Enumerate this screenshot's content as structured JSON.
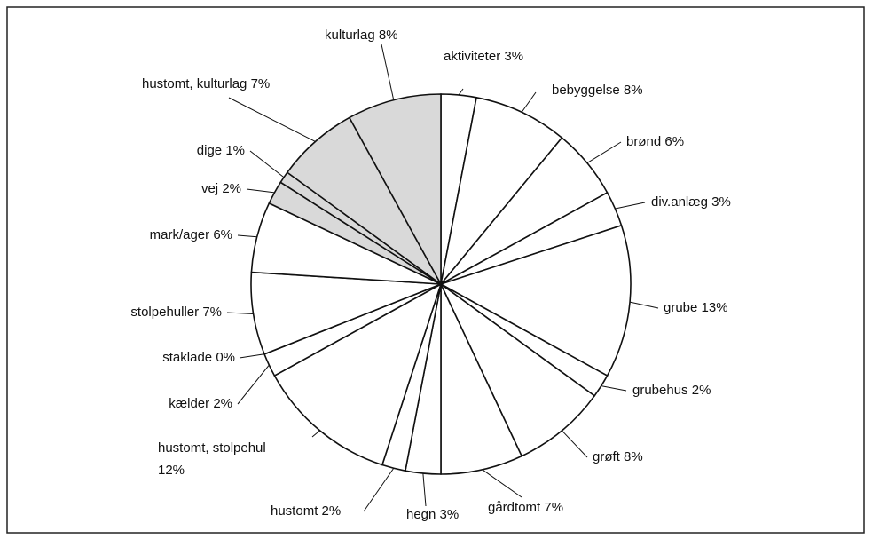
{
  "chart_data": {
    "type": "pie",
    "categories": [
      "aktiviteter",
      "bebyggelse",
      "brønd",
      "div.anlæg",
      "grube",
      "grubehus",
      "grøft",
      "gårdtomt",
      "hegn",
      "hustomt",
      "hustomt, stolpehul",
      "kælder",
      "staklade",
      "stolpehuller",
      "mark/ager",
      "vej",
      "dige",
      "hustomt, kulturlag",
      "kulturlag"
    ],
    "values": [
      3,
      8,
      6,
      3,
      13,
      2,
      8,
      7,
      3,
      2,
      12,
      2,
      0,
      7,
      6,
      2,
      1,
      7,
      8
    ],
    "value_labels": [
      "3%",
      "8%",
      "6%",
      "3%",
      "13%",
      "2%",
      "8%",
      "7%",
      "3%",
      "2%",
      "12%",
      "2%",
      "0%",
      "7%",
      "6%",
      "2%",
      "1%",
      "7%",
      "8%"
    ],
    "colors": [
      "#ffffff",
      "#ffffff",
      "#ffffff",
      "#ffffff",
      "#ffffff",
      "#ffffff",
      "#ffffff",
      "#ffffff",
      "#ffffff",
      "#ffffff",
      "#ffffff",
      "#ffffff",
      "#ffffff",
      "#ffffff",
      "#ffffff",
      "#d9d9d9",
      "#d9d9d9",
      "#d9d9d9",
      "#d9d9d9"
    ]
  }
}
